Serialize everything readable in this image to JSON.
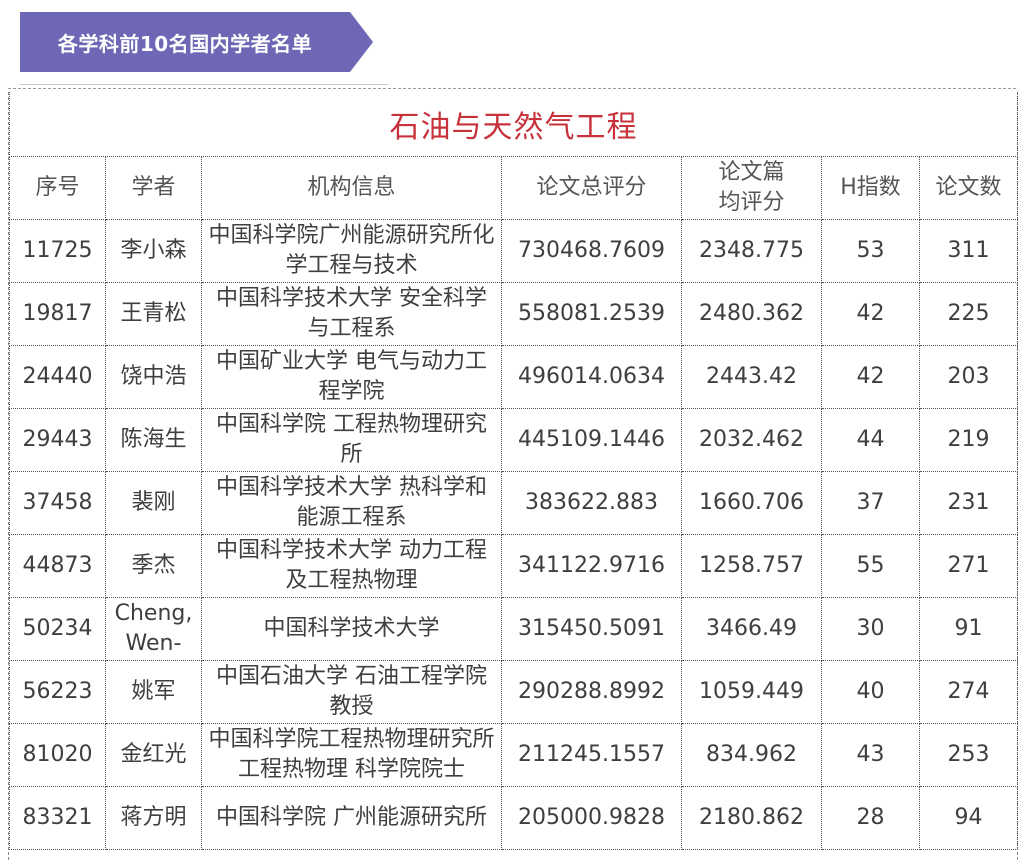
{
  "banner": {
    "text": "各学科前10名国内学者名单",
    "color": "#6e67b6"
  },
  "table": {
    "title": "石油与天然气工程",
    "title_color": "#c8323a",
    "headers": [
      "序号",
      "学者",
      "机构信息",
      "论文总评分",
      "论文篇\n均评分",
      "H指数",
      "论文数"
    ],
    "rows": [
      {
        "id": "11725",
        "name": "李小森",
        "institution": "中国科学院广州能源研究所化学工程与技术",
        "total_score": "730468.7609",
        "avg_score": "2348.775",
        "h_index": "53",
        "papers": "311"
      },
      {
        "id": "19817",
        "name": "王青松",
        "institution": "中国科学技术大学 安全科学与工程系",
        "total_score": "558081.2539",
        "avg_score": "2480.362",
        "h_index": "42",
        "papers": "225"
      },
      {
        "id": "24440",
        "name": "饶中浩",
        "institution": "中国矿业大学 电气与动力工程学院",
        "total_score": "496014.0634",
        "avg_score": "2443.42",
        "h_index": "42",
        "papers": "203"
      },
      {
        "id": "29443",
        "name": "陈海生",
        "institution": "中国科学院 工程热物理研究所",
        "total_score": "445109.1446",
        "avg_score": "2032.462",
        "h_index": "44",
        "papers": "219"
      },
      {
        "id": "37458",
        "name": "裴刚",
        "institution": "中国科学技术大学 热科学和能源工程系",
        "total_score": "383622.883",
        "avg_score": "1660.706",
        "h_index": "37",
        "papers": "231"
      },
      {
        "id": "44873",
        "name": "季杰",
        "institution": "中国科学技术大学 动力工程及工程热物理",
        "total_score": "341122.9716",
        "avg_score": "1258.757",
        "h_index": "55",
        "papers": "271"
      },
      {
        "id": "50234",
        "name": "Cheng, Wen-",
        "institution": "中国科学技术大学",
        "total_score": "315450.5091",
        "avg_score": "3466.49",
        "h_index": "30",
        "papers": "91"
      },
      {
        "id": "56223",
        "name": "姚军",
        "institution": "中国石油大学 石油工程学院 教授",
        "total_score": "290288.8992",
        "avg_score": "1059.449",
        "h_index": "40",
        "papers": "274"
      },
      {
        "id": "81020",
        "name": "金红光",
        "institution": "中国科学院工程热物理研究所 工程热物理 科学院院士",
        "total_score": "211245.1557",
        "avg_score": "834.962",
        "h_index": "43",
        "papers": "253"
      },
      {
        "id": "83321",
        "name": "蒋方明",
        "institution": "中国科学院 广州能源研究所",
        "total_score": "205000.9828",
        "avg_score": "2180.862",
        "h_index": "28",
        "papers": "94"
      }
    ]
  }
}
